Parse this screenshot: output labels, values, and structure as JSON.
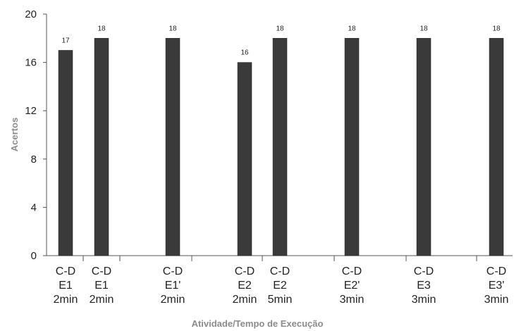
{
  "chart_data": {
    "type": "bar",
    "categories": [
      [
        "C-D",
        "E1",
        "2min"
      ],
      [
        "C-D",
        "E1",
        "2min"
      ],
      [
        "C-D",
        "E1'",
        "2min"
      ],
      [
        "C-D",
        "E2",
        "2min"
      ],
      [
        "C-D",
        "E2",
        "5min"
      ],
      [
        "C-D",
        "E2'",
        "3min"
      ],
      [
        "C-D",
        "E3",
        "3min"
      ],
      [
        "C-D",
        "E3'",
        "3min"
      ]
    ],
    "values": [
      17,
      18,
      18,
      16,
      18,
      18,
      18,
      18
    ],
    "data_labels": [
      "17",
      "18",
      "18",
      "16",
      "18",
      "18",
      "18",
      "18"
    ],
    "xlabel": "Atividade/Tempo de Execução",
    "ylabel": "Acertos",
    "ylim": [
      0,
      20
    ],
    "yticks": [
      0,
      4,
      8,
      12,
      16,
      20
    ],
    "grid": false,
    "bar_color": "#3a3a3a"
  }
}
